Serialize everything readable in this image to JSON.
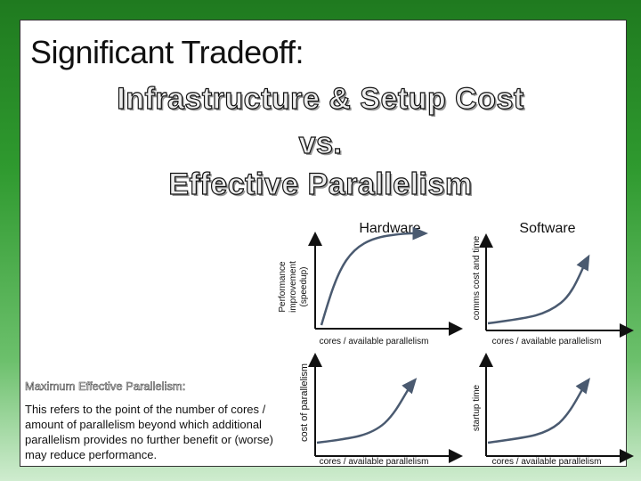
{
  "title": "Significant Tradeoff:",
  "subtitle": {
    "line1": "Infrastructure & Setup Cost",
    "line2": "vs.",
    "line3": "Effective Parallelism"
  },
  "columns": {
    "hardware": "Hardware",
    "software": "Software"
  },
  "charts": [
    {
      "ylabel_lines": [
        "Performance",
        "improvement",
        "(speedup)"
      ],
      "xlabel": "cores / available parallelism",
      "curve": "saturating"
    },
    {
      "ylabel": "comms cost and time",
      "xlabel": "cores / available parallelism",
      "curve": "exponential"
    },
    {
      "ylabel": "cost of parallelism",
      "xlabel": "cores / available parallelism",
      "curve": "exponential"
    },
    {
      "ylabel": "startup time",
      "xlabel": "cores / available parallelism",
      "curve": "exponential"
    }
  ],
  "definition": {
    "heading": "Maximum Effective Parallelism:",
    "body": "This refers to the point of the number of cores / amount of parallelism beyond which additional parallelism provides no further benefit or (worse) may reduce performance."
  },
  "colors": {
    "curve": "#4a5a70",
    "background": "#2f9a2f"
  }
}
